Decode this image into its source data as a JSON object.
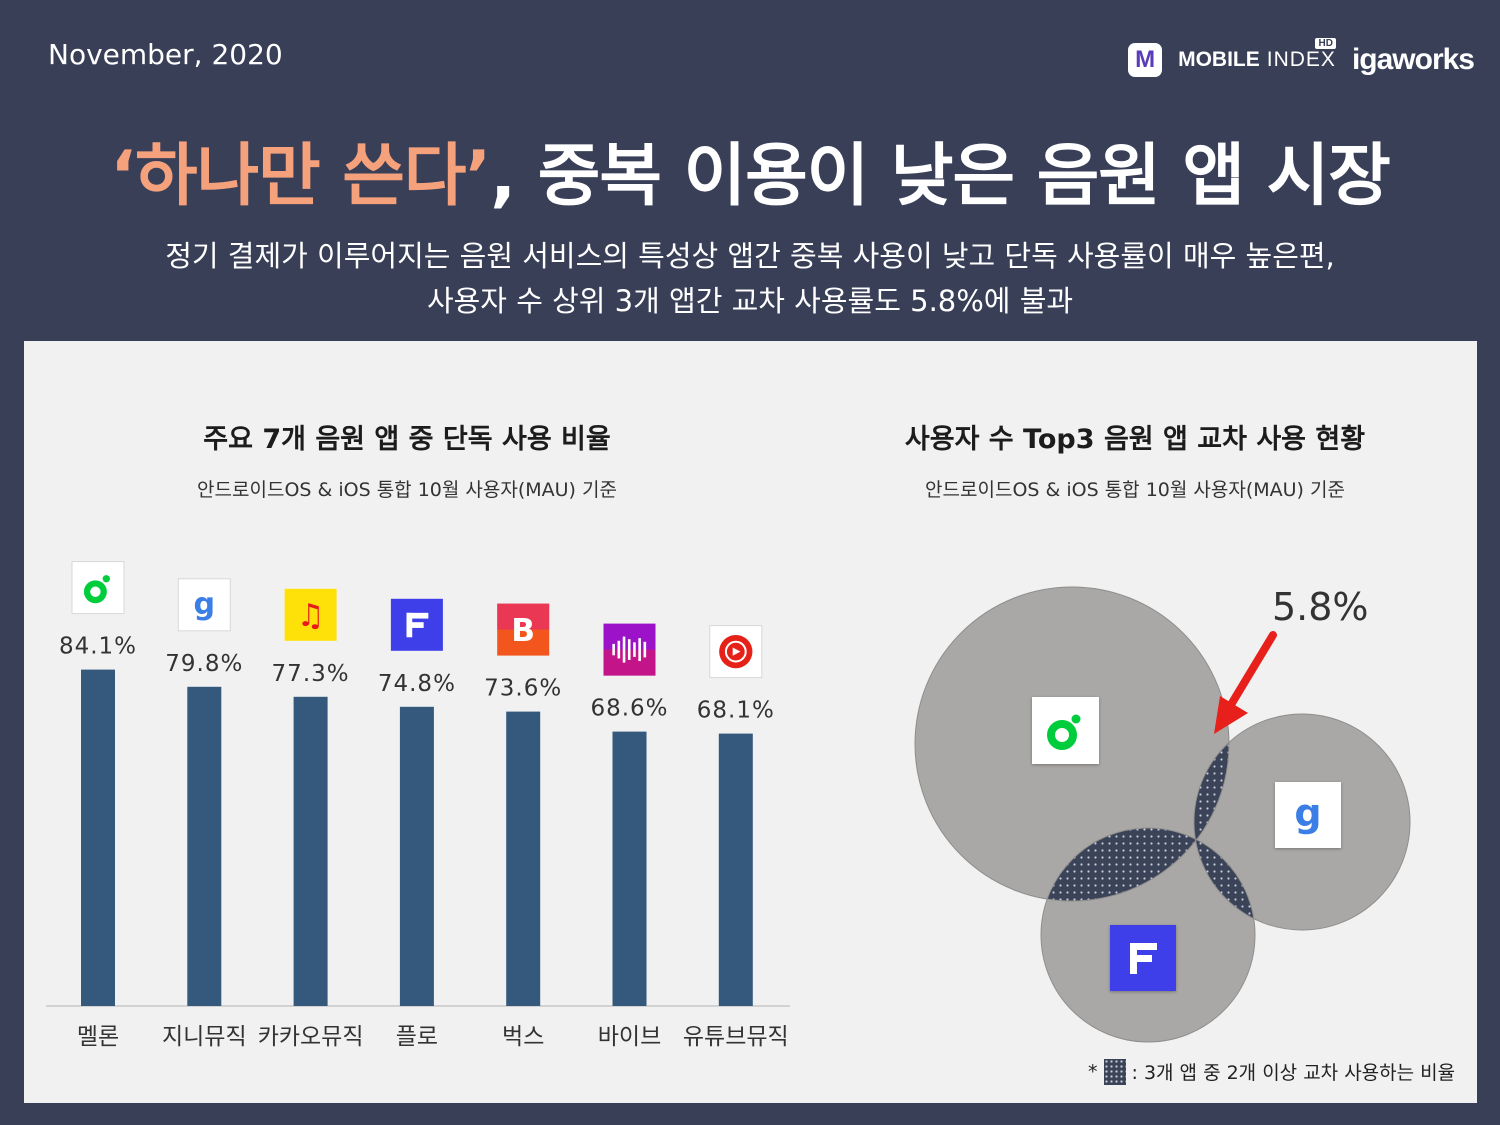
{
  "header": {
    "date": "November, 2020",
    "brand_mobile": "MOBILE",
    "brand_index": "INDEX",
    "brand_hd": "HD",
    "brand_igaworks": "igaworks"
  },
  "headline": {
    "quote": "‘하나만 쓴다’",
    "rest": ", 중복 이용이 낮은 음원 앱 시장"
  },
  "subtitle": {
    "line1": "정기 결제가 이루어지는 음원 서비스의  특성상 앱간 중복 사용이 낮고 단독 사용률이 매우 높은편,",
    "line2": "사용자 수 상위 3개 앱간 교차 사용률도 5.8%에 불과"
  },
  "left_chart": {
    "title": "주요 7개 음원 앱 중 단독 사용 비율",
    "note": "안드로이드OS & iOS 통합 10월 사용자(MAU) 기준"
  },
  "right_chart": {
    "title": "사용자 수 Top3 음원 앱 교차 사용 현황",
    "note": "안드로이드OS & iOS 통합 10월 사용자(MAU) 기준",
    "callout": "5.8%",
    "legend_star": "*",
    "legend_text": ": 3개 앱 중 2개 이상 교차 사용하는 비율"
  },
  "colors": {
    "background": "#383f57",
    "panel": "#f1f1f2",
    "bar": "#34597d",
    "headline_accent": "#f5a17c",
    "venn_circle": "#a9a8a6",
    "venn_overlap": "#3a4358",
    "arrow": "#e8201b"
  },
  "chart_data": [
    {
      "type": "bar",
      "categories": [
        "멜론",
        "지니뮤직",
        "카카오뮤직",
        "플로",
        "벅스",
        "바이브",
        "유튜브뮤직"
      ],
      "values": [
        84.1,
        79.8,
        77.3,
        74.8,
        73.6,
        68.6,
        68.1
      ],
      "labels": [
        "84.1%",
        "79.8%",
        "77.3%",
        "74.8%",
        "73.6%",
        "68.6%",
        "68.1%"
      ],
      "icons": [
        "melon-icon",
        "genie-icon",
        "kakao-music-icon",
        "flo-icon",
        "bugs-icon",
        "vibe-icon",
        "youtube-music-icon"
      ],
      "ylim": [
        0,
        100
      ]
    },
    {
      "type": "venn",
      "sets": [
        "melon-icon",
        "genie-icon",
        "flo-icon"
      ],
      "overlap_value": 5.8,
      "overlap_label": "5.8%"
    }
  ]
}
